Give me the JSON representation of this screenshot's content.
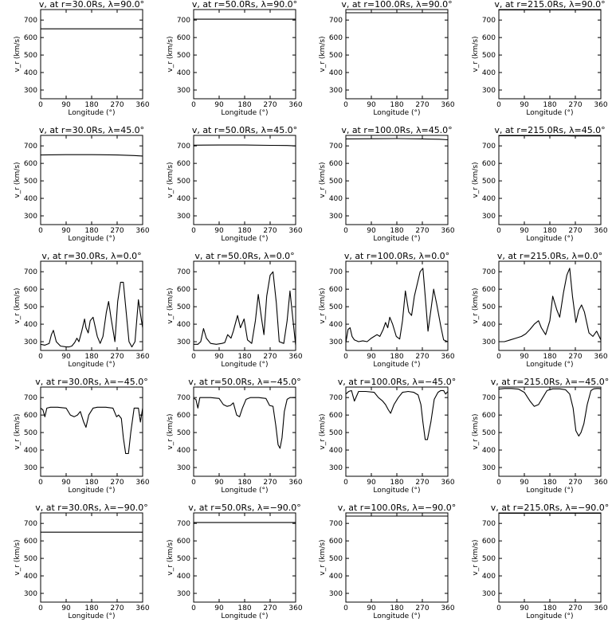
{
  "chart_data": {
    "type": "line",
    "title_pattern": "v_r at r=R, λ=L",
    "xlabel": "Longitude (°)",
    "ylabel": "v_r (km/s)",
    "xlim": [
      0,
      360
    ],
    "ylim": [
      250,
      760
    ],
    "xticks": [
      0,
      90,
      180,
      270,
      360
    ],
    "yticks": [
      300,
      400,
      500,
      600,
      700
    ],
    "line_color": "#000000",
    "radii": [
      "30.0Rs",
      "50.0Rs",
      "100.0Rs",
      "215.0Rs"
    ],
    "latitudes": [
      "90.0°",
      "45.0°",
      "0.0°",
      "−45.0°",
      "−90.0°"
    ],
    "panels": [
      {
        "title": "v, at r=30.0Rs, λ=90.0°",
        "x": [
          0,
          360
        ],
        "y": [
          650,
          650
        ]
      },
      {
        "title": "v, at r=50.0Rs, λ=90.0°",
        "x": [
          0,
          360
        ],
        "y": [
          705,
          705
        ]
      },
      {
        "title": "v, at r=100.0Rs, λ=90.0°",
        "x": [
          0,
          360
        ],
        "y": [
          742,
          742
        ]
      },
      {
        "title": "v, at r=215.0Rs, λ=90.0°",
        "x": [
          0,
          360
        ],
        "y": [
          758,
          758
        ]
      },
      {
        "title": "v, at r=30.0Rs, λ=45.0°",
        "x": [
          0,
          90,
          180,
          270,
          330,
          360
        ],
        "y": [
          648,
          650,
          650,
          648,
          645,
          642
        ]
      },
      {
        "title": "v, at r=50.0Rs, λ=45.0°",
        "x": [
          0,
          90,
          180,
          270,
          330,
          360
        ],
        "y": [
          704,
          705,
          705,
          703,
          702,
          700
        ]
      },
      {
        "title": "v, at r=100.0Rs, λ=45.0°",
        "x": [
          0,
          90,
          180,
          270,
          330,
          360
        ],
        "y": [
          740,
          741,
          742,
          740,
          738,
          735
        ]
      },
      {
        "title": "v, at r=215.0Rs, λ=45.0°",
        "x": [
          0,
          240,
          260,
          360
        ],
        "y": [
          758,
          758,
          757,
          757
        ]
      },
      {
        "title": "v, at r=30.0Rs, λ=0.0°",
        "x": [
          0,
          15,
          30,
          38,
          45,
          55,
          70,
          90,
          100,
          110,
          120,
          128,
          135,
          145,
          155,
          160,
          168,
          175,
          185,
          200,
          210,
          220,
          232,
          240,
          248,
          262,
          272,
          282,
          292,
          300,
          312,
          322,
          333,
          345,
          352,
          360
        ],
        "y": [
          285,
          280,
          290,
          340,
          365,
          300,
          275,
          270,
          270,
          275,
          295,
          320,
          300,
          360,
          430,
          380,
          350,
          420,
          440,
          330,
          290,
          330,
          470,
          530,
          440,
          300,
          530,
          640,
          640,
          500,
          300,
          270,
          300,
          540,
          460,
          380
        ]
      },
      {
        "title": "v, at r=50.0Rs, λ=0.0°",
        "x": [
          0,
          15,
          25,
          35,
          45,
          60,
          80,
          100,
          110,
          120,
          132,
          140,
          150,
          155,
          165,
          178,
          190,
          205,
          218,
          228,
          240,
          248,
          258,
          270,
          280,
          292,
          302,
          318,
          330,
          340,
          352,
          360
        ],
        "y": [
          285,
          285,
          300,
          375,
          320,
          290,
          285,
          290,
          295,
          340,
          320,
          360,
          420,
          450,
          380,
          430,
          310,
          290,
          420,
          570,
          430,
          340,
          560,
          680,
          700,
          520,
          300,
          290,
          420,
          590,
          400,
          280
        ]
      },
      {
        "title": "v, at r=100.0Rs, λ=0.0°",
        "x": [
          0,
          8,
          15,
          22,
          30,
          45,
          60,
          75,
          90,
          100,
          110,
          120,
          132,
          140,
          148,
          155,
          165,
          178,
          190,
          200,
          210,
          222,
          232,
          242,
          252,
          262,
          272,
          280,
          290,
          300,
          310,
          320,
          335,
          345,
          352,
          360
        ],
        "y": [
          295,
          370,
          380,
          330,
          310,
          300,
          305,
          300,
          320,
          330,
          340,
          330,
          370,
          410,
          380,
          440,
          400,
          330,
          315,
          420,
          590,
          470,
          450,
          560,
          630,
          700,
          720,
          560,
          360,
          480,
          600,
          520,
          390,
          310,
          305,
          300
        ]
      },
      {
        "title": "v, at r=215.0Rs, λ=0.0°",
        "x": [
          0,
          20,
          40,
          60,
          80,
          95,
          110,
          125,
          140,
          150,
          165,
          180,
          190,
          205,
          215,
          228,
          240,
          250,
          260,
          272,
          282,
          292,
          302,
          318,
          332,
          345,
          360
        ],
        "y": [
          300,
          300,
          310,
          320,
          330,
          345,
          370,
          400,
          420,
          380,
          340,
          420,
          560,
          480,
          440,
          580,
          680,
          720,
          560,
          410,
          480,
          510,
          470,
          350,
          330,
          360,
          310
        ]
      },
      {
        "title": "v, at r=30.0Rs, λ=−45.0°",
        "x": [
          0,
          8,
          15,
          22,
          35,
          60,
          90,
          105,
          118,
          130,
          140,
          152,
          160,
          170,
          185,
          200,
          230,
          255,
          268,
          275,
          285,
          292,
          300,
          310,
          318,
          330,
          345,
          352,
          360
        ],
        "y": [
          640,
          630,
          590,
          640,
          645,
          645,
          640,
          600,
          590,
          600,
          620,
          560,
          530,
          600,
          640,
          645,
          645,
          640,
          590,
          600,
          580,
          470,
          380,
          380,
          500,
          640,
          640,
          560,
          640
        ]
      },
      {
        "title": "v, at r=50.0Rs, λ=−45.0°",
        "x": [
          0,
          8,
          15,
          22,
          35,
          60,
          90,
          105,
          118,
          130,
          140,
          152,
          162,
          172,
          185,
          200,
          230,
          255,
          268,
          280,
          290,
          298,
          305,
          312,
          320,
          330,
          340,
          350,
          360
        ],
        "y": [
          695,
          690,
          640,
          700,
          700,
          700,
          695,
          660,
          650,
          655,
          670,
          600,
          590,
          640,
          690,
          700,
          700,
          695,
          655,
          650,
          540,
          430,
          410,
          470,
          620,
          690,
          700,
          700,
          700
        ]
      },
      {
        "title": "v, at r=100.0Rs, λ=−45.0°",
        "x": [
          0,
          10,
          20,
          30,
          45,
          70,
          100,
          115,
          130,
          140,
          150,
          158,
          170,
          185,
          200,
          220,
          240,
          255,
          265,
          272,
          280,
          288,
          300,
          312,
          325,
          335,
          345,
          352,
          360
        ],
        "y": [
          720,
          735,
          740,
          680,
          735,
          735,
          730,
          700,
          680,
          660,
          630,
          610,
          660,
          700,
          730,
          735,
          730,
          715,
          660,
          560,
          460,
          460,
          560,
          690,
          730,
          740,
          740,
          720,
          735
        ]
      },
      {
        "title": "v, at r=215.0Rs, λ=−45.0°",
        "x": [
          0,
          20,
          45,
          70,
          90,
          110,
          125,
          140,
          155,
          170,
          190,
          215,
          235,
          250,
          262,
          272,
          282,
          290,
          300,
          312,
          325,
          335,
          345,
          352,
          360
        ],
        "y": [
          748,
          752,
          752,
          748,
          730,
          680,
          650,
          660,
          700,
          740,
          750,
          750,
          745,
          720,
          640,
          510,
          480,
          500,
          550,
          660,
          740,
          750,
          752,
          752,
          750
        ]
      },
      {
        "title": "v, at r=30.0Rs, λ=−90.0°",
        "x": [
          0,
          360
        ],
        "y": [
          650,
          650
        ]
      },
      {
        "title": "v, at r=50.0Rs, λ=−90.0°",
        "x": [
          0,
          360
        ],
        "y": [
          705,
          705
        ]
      },
      {
        "title": "v, at r=100.0Rs, λ=−90.0°",
        "x": [
          0,
          360
        ],
        "y": [
          742,
          742
        ]
      },
      {
        "title": "v, at r=215.0Rs, λ=−90.0°",
        "x": [
          0,
          360
        ],
        "y": [
          758,
          758
        ]
      }
    ]
  }
}
